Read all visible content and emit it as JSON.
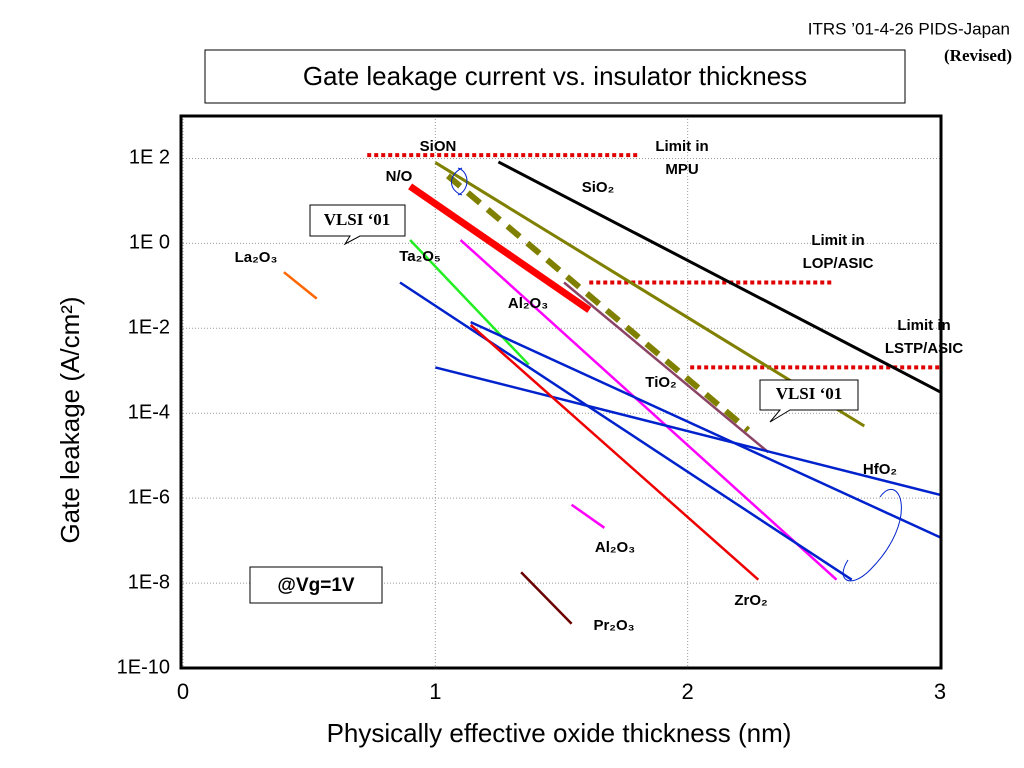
{
  "header": "ITRS ’01-4-26 PIDS-Japan",
  "revised": "(Revised)",
  "callouts": [
    "VLSI ‘01",
    "VLSI ‘01"
  ],
  "condition": "@Vg=1V",
  "chart_data": {
    "type": "line",
    "title": "Gate leakage current vs. insulator thickness",
    "x_label": "Physically effective oxide thickness (nm)",
    "y_label": "Gate leakage (A/cm²)",
    "xlim": [
      0,
      3
    ],
    "xticks": [
      0,
      1,
      2,
      3
    ],
    "ylim": [
      1e-10,
      1000
    ],
    "log_y": true,
    "grid": true,
    "yticks": [
      {
        "value": 100,
        "label": "1E 2"
      },
      {
        "value": 1,
        "label": "1E 0"
      },
      {
        "value": 0.01,
        "label": "1E-2"
      },
      {
        "value": 0.0001,
        "label": "1E-4"
      },
      {
        "value": 1e-06,
        "label": "1E-6"
      },
      {
        "value": 1e-08,
        "label": "1E-8"
      },
      {
        "value": 1e-10,
        "label": "1E-10"
      }
    ],
    "series": [
      {
        "color": "#e00000",
        "dash": "dotted",
        "width": 4,
        "x": [
          0.73,
          1.8
        ],
        "values": [
          120,
          120
        ]
      },
      {
        "color": "#e00000",
        "dash": "dotted",
        "width": 4,
        "x": [
          1.61,
          2.57
        ],
        "values": [
          0.12,
          0.12
        ]
      },
      {
        "color": "#e00000",
        "dash": "dotted",
        "width": 4,
        "x": [
          2.01,
          3.0
        ],
        "values": [
          0.0012,
          0.0012
        ]
      },
      {
        "color": "#808000",
        "width": 3,
        "x": [
          1.0,
          2.7
        ],
        "values": [
          80,
          5e-05
        ]
      },
      {
        "color": "#808000",
        "dash": "dashed",
        "width": 6,
        "x": [
          1.05,
          2.24
        ],
        "values": [
          39,
          4e-05
        ]
      },
      {
        "color": "#000000",
        "width": 3,
        "x": [
          1.25,
          3.0
        ],
        "values": [
          83,
          0.00032
        ]
      },
      {
        "color": "#ff0000",
        "width": 7,
        "x": [
          0.9,
          1.61
        ],
        "values": [
          22,
          0.027
        ]
      },
      {
        "color": "#22ee22",
        "width": 2.5,
        "x": [
          0.9,
          1.37
        ],
        "values": [
          1.2,
          0.0014
        ]
      },
      {
        "color": "#ff6600",
        "width": 2.5,
        "x": [
          0.4,
          0.53
        ],
        "values": [
          0.21,
          0.05
        ]
      },
      {
        "color": "#ff00ff",
        "width": 2.5,
        "x": [
          1.1,
          2.59
        ],
        "values": [
          1.2,
          1.2e-08
        ]
      },
      {
        "color": "#8b4466",
        "width": 2.5,
        "x": [
          1.51,
          2.32
        ],
        "values": [
          0.12,
          1.2e-05
        ]
      },
      {
        "color": "#0022cc",
        "width": 2.5,
        "x": [
          0.86,
          2.65
        ],
        "values": [
          0.12,
          1.2e-08
        ]
      },
      {
        "color": "#0022cc",
        "width": 2.5,
        "x": [
          1.0,
          3.0
        ],
        "values": [
          0.0012,
          1.2e-06
        ]
      },
      {
        "color": "#0022cc",
        "width": 2.5,
        "x": [
          1.14,
          3.0
        ],
        "values": [
          0.014,
          1.2e-07
        ]
      },
      {
        "color": "#ee0000",
        "width": 2.5,
        "x": [
          1.14,
          2.28
        ],
        "values": [
          0.012,
          1.2e-08
        ]
      },
      {
        "color": "#ff00ff",
        "width": 2.5,
        "x": [
          1.54,
          1.67
        ],
        "values": [
          7e-07,
          2e-07
        ]
      },
      {
        "color": "#6b0000",
        "width": 2.5,
        "x": [
          1.34,
          1.54
        ],
        "values": [
          1.8e-08,
          1.1e-09
        ]
      }
    ],
    "annotations": [
      "SiON",
      "N/O",
      "SiO₂",
      "Limit in",
      "MPU",
      "Limit in",
      "LOP/ASIC",
      "Limit in",
      "LSTP/ASIC",
      "La₂O₃",
      "Ta₂O₅",
      "Al₂O₃",
      "TiO₂",
      "HfO₂",
      "Al₂O₃",
      "ZrO₂",
      "Pr₂O₃"
    ]
  }
}
